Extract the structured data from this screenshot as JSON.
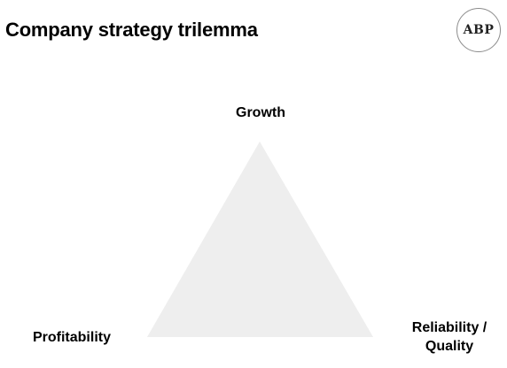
{
  "header": {
    "title": "Company strategy trilemma",
    "logo_text": "ABP"
  },
  "diagram": {
    "type": "triangle",
    "fill_color": "#eeeeee",
    "vertices": {
      "top": "Growth",
      "bottom_left": "Profitability",
      "bottom_right": "Reliability / Quality"
    }
  }
}
